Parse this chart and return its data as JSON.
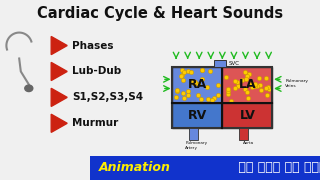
{
  "title": "Cardiac Cycle & Heart Sounds",
  "title_bg": "#e85555",
  "title_color": "#111111",
  "bullet_items": [
    "Phases",
    "Lub-Dub",
    "S1,S2,S3,S4",
    "Murmur"
  ],
  "bullet_color": "#cc2211",
  "bottom_text_1": "Animation",
  "bottom_text_2": " की मदद से समझें",
  "bottom_bg": "#1a1a2e",
  "bottom_text_bg": "#1133cc",
  "anim_color": "#ffee00",
  "rest_color": "#ffffff",
  "left_bg": "#2a2a2a",
  "heart_chambers": {
    "RA": {
      "color": "#6688dd",
      "label": "RA",
      "dots": true
    },
    "LA": {
      "color": "#dd5555",
      "label": "LA",
      "dots": true
    },
    "RV": {
      "color": "#4477cc",
      "label": "RV",
      "dots": false
    },
    "LV": {
      "color": "#cc3333",
      "label": "LV",
      "dots": false
    }
  },
  "dot_color": "#ffcc00",
  "dot_outline": "#cc9900",
  "diagram_bg": "#dddddd",
  "arrow_color": "#22bb22",
  "svc_color": "#6688dd",
  "aorta_color": "#cc3333",
  "bg_color": "#f0f0f0"
}
